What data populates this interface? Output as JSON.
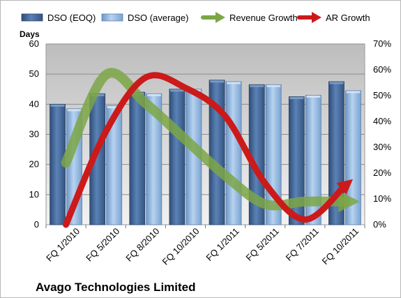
{
  "chart_data": {
    "type": "bar",
    "title": "Avago Technologies Limited",
    "ylabel": "Days",
    "categories": [
      "FQ 1/2010",
      "FQ 5/2010",
      "FQ 8/2010",
      "FQ 10/2010",
      "FQ 1/2011",
      "FQ 5/2011",
      "FQ 7/2011",
      "FQ 10/2011"
    ],
    "ylim": [
      0,
      60
    ],
    "yticks": [
      "0",
      "10",
      "20",
      "30",
      "40",
      "50",
      "60"
    ],
    "y2lim": [
      0,
      0.7
    ],
    "y2ticks": [
      "0%",
      "10%",
      "20%",
      "30%",
      "40%",
      "50%",
      "60%",
      "70%"
    ],
    "legend_position": "top",
    "grid": true,
    "series": [
      {
        "name": "DSO (EOQ)",
        "type": "bar",
        "color": "#4a6fa0",
        "values": [
          40,
          43.5,
          44,
          45,
          48,
          46.5,
          42.5,
          47.5
        ]
      },
      {
        "name": "DSO (average)",
        "type": "bar",
        "color": "#96b9e0",
        "values": [
          38.5,
          39.5,
          43.5,
          45,
          47.5,
          46.5,
          43,
          44.5
        ]
      },
      {
        "name": "Revenue Growth",
        "type": "line",
        "axis": "secondary",
        "color": "#7ca646",
        "values": [
          0.24,
          0.58,
          0.47,
          0.33,
          0.19,
          0.08,
          0.09,
          0.09
        ]
      },
      {
        "name": "AR Growth",
        "type": "line",
        "axis": "secondary",
        "color": "#cc1a1a",
        "values": [
          0.0,
          0.36,
          0.57,
          0.53,
          0.42,
          0.16,
          0.02,
          0.15
        ]
      }
    ]
  }
}
